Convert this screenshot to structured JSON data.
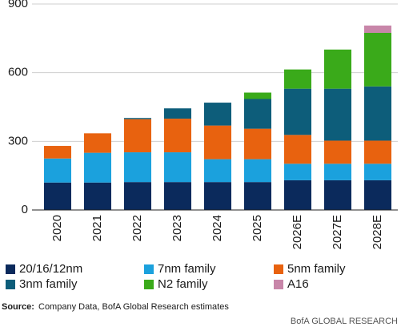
{
  "chart_data": {
    "type": "stacked-bar",
    "categories": [
      "2020",
      "2021",
      "2022",
      "2023",
      "2024",
      "2025",
      "2026E",
      "2027E",
      "2028E"
    ],
    "series": [
      {
        "name": "20/16/12nm",
        "color": "#0b2a5c",
        "values": [
          120,
          120,
          122,
          122,
          122,
          122,
          130,
          130,
          130
        ]
      },
      {
        "name": "7nm family",
        "color": "#1ba1dd",
        "values": [
          105,
          130,
          130,
          130,
          100,
          100,
          72,
          72,
          72
        ]
      },
      {
        "name": "5nm family",
        "color": "#e8620f",
        "values": [
          55,
          85,
          145,
          147,
          147,
          133,
          126,
          101,
          101
        ]
      },
      {
        "name": "3nm family",
        "color": "#0d5d7a",
        "values": [
          0,
          0,
          5,
          45,
          100,
          130,
          202,
          227,
          237
        ]
      },
      {
        "name": "N2 family",
        "color": "#3aaa1a",
        "values": [
          0,
          0,
          0,
          0,
          0,
          28,
          84,
          171,
          234
        ]
      },
      {
        "name": "A16",
        "color": "#c886a9",
        "values": [
          0,
          0,
          0,
          0,
          0,
          0,
          0,
          0,
          32
        ]
      }
    ],
    "ylim": [
      0,
      900
    ],
    "yticks": [
      0,
      300,
      600,
      900
    ],
    "grid": true,
    "source_label": "Source:",
    "source_text": "Company Data, BofA Global Research estimates",
    "footer": "BofA GLOBAL RESEARCH"
  }
}
